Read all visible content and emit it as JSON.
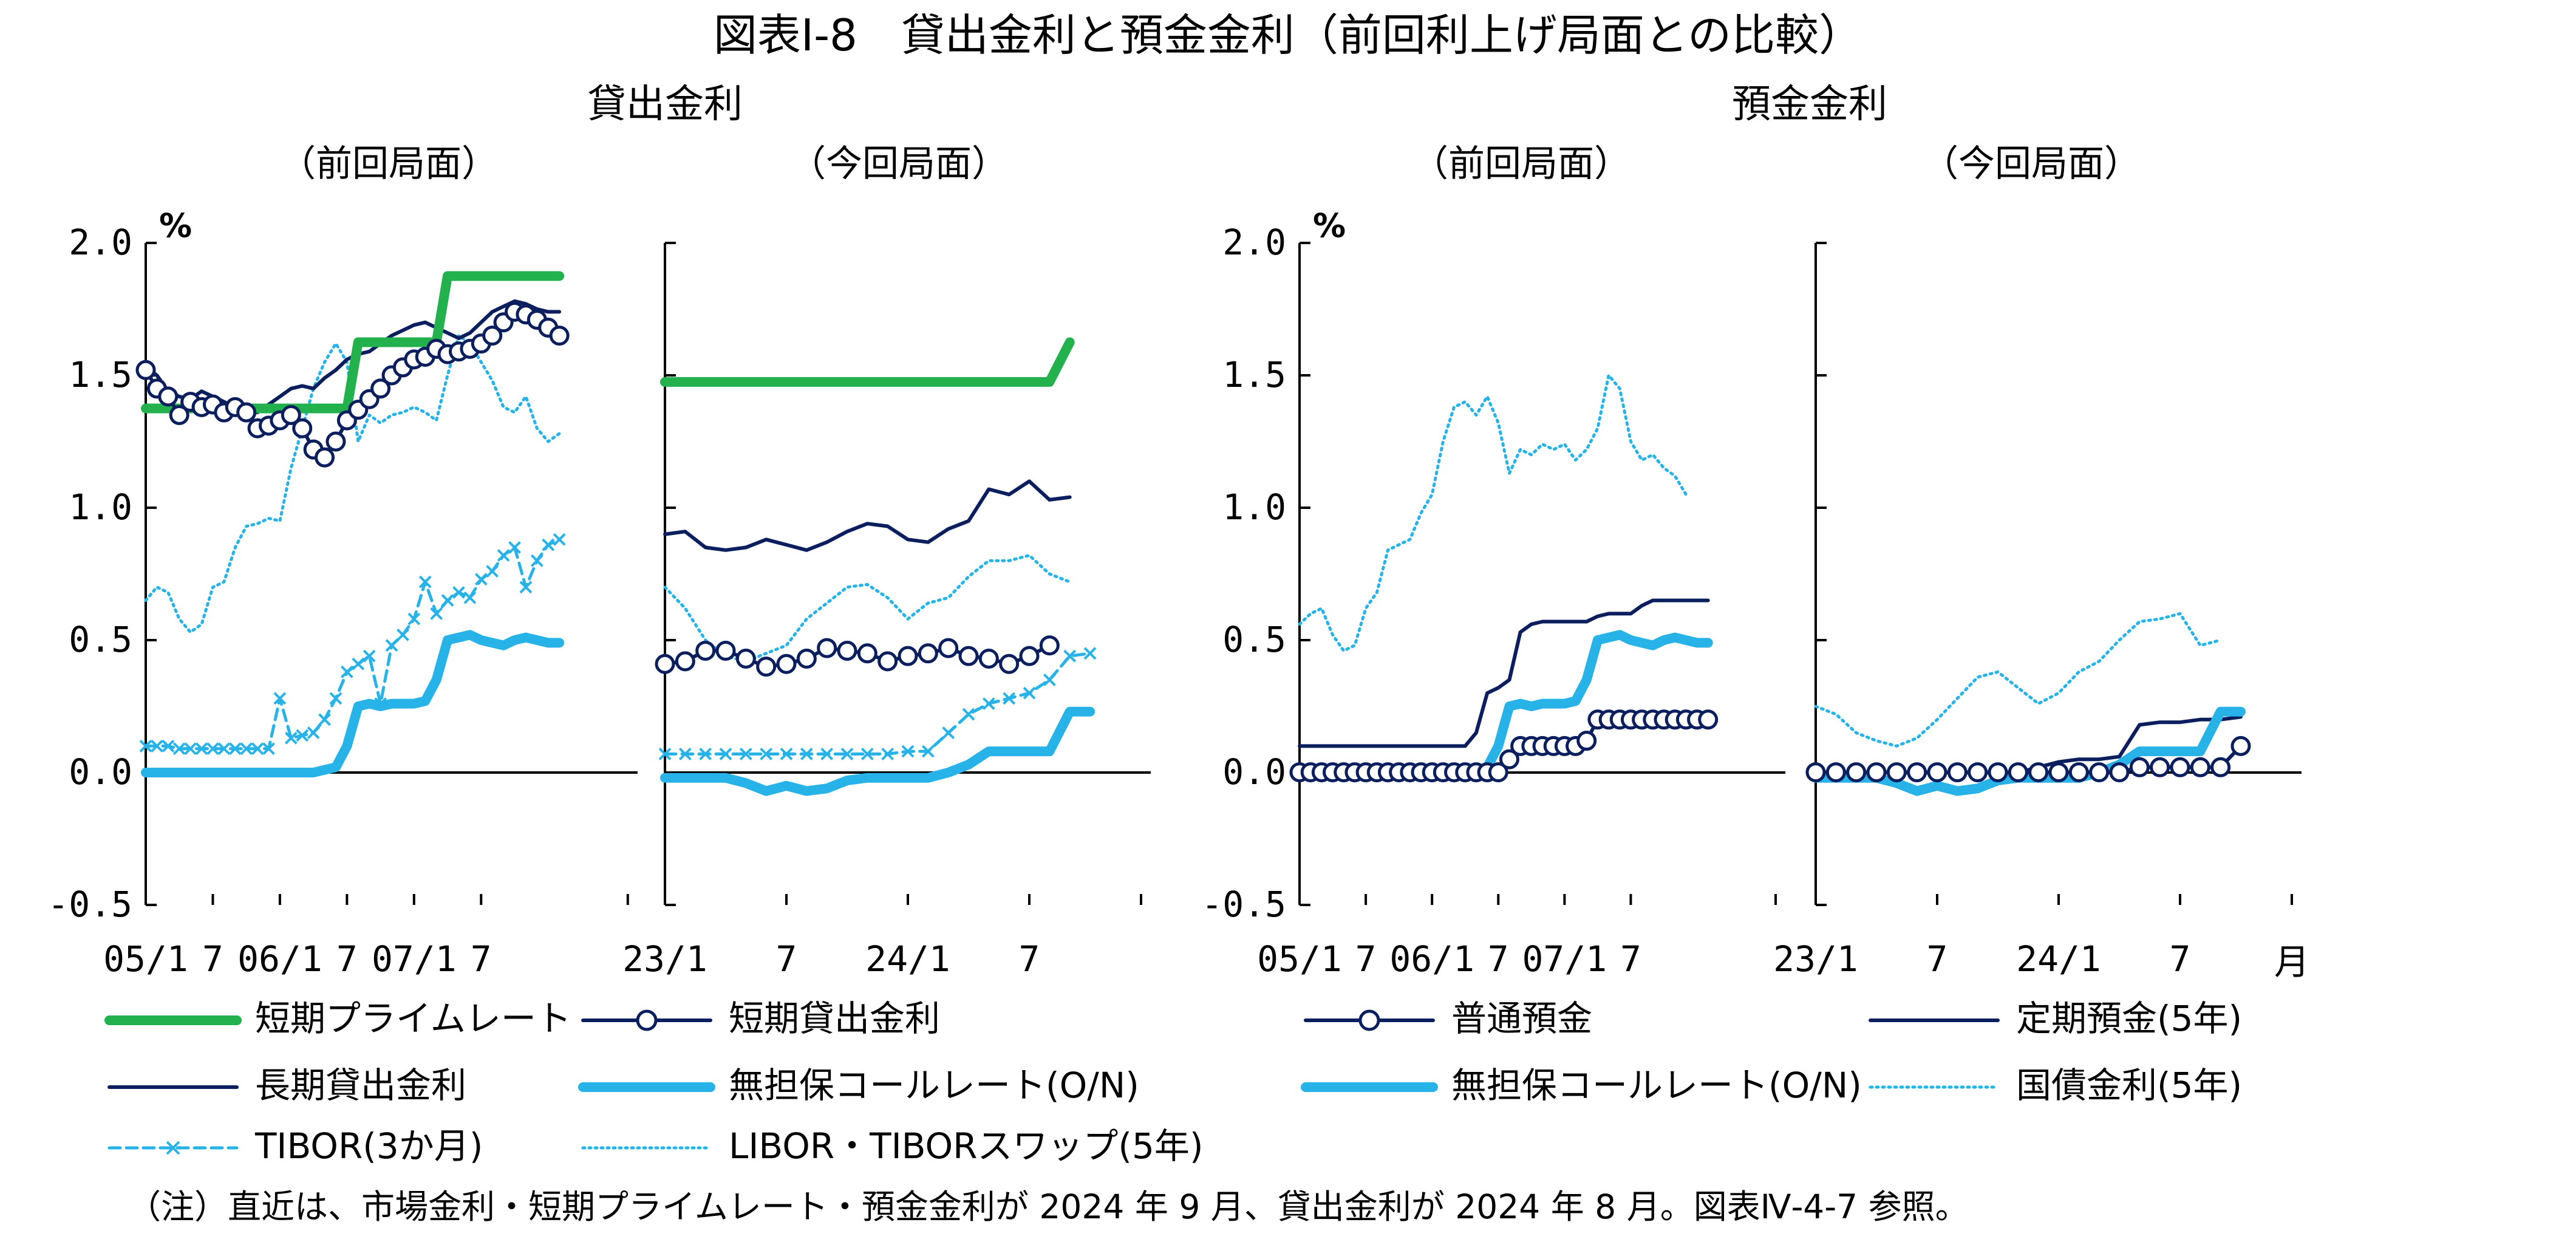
{
  "title": "図表Ⅰ-8　貸出金利と預金金利（前回利上げ局面との比較）",
  "note": "（注）直近は、市場金利・短期プライムレート・預金金利が 2024 年 9 月、貸出金利が 2024 年 8 月。図表Ⅳ-4-7 参照。",
  "groups": {
    "lending": "貸出金利",
    "deposit": "預金金利"
  },
  "subtitles": {
    "previous": "（前回局面）",
    "current": "（今回局面）"
  },
  "unit": "%",
  "month_label": "月",
  "colors": {
    "green": "#22b14c",
    "navy": "#0b1f5e",
    "cyan": "#27b3e8"
  },
  "chart_data": [
    {
      "type": "line",
      "panel": "lending-previous",
      "ylim": [
        -0.5,
        2.0
      ],
      "y_ticks": [
        "2.0",
        "1.5",
        "1.0",
        "0.5",
        "0.0",
        "-0.5"
      ],
      "x_ticks": [
        "05/1",
        "7",
        "06/1",
        "7",
        "07/1",
        "7"
      ],
      "series": [
        {
          "name": "短期プライムレート",
          "style": "green-thick",
          "values": [
            1.375,
            1.375,
            1.375,
            1.375,
            1.375,
            1.375,
            1.375,
            1.375,
            1.375,
            1.375,
            1.375,
            1.375,
            1.375,
            1.375,
            1.375,
            1.375,
            1.375,
            1.375,
            1.375,
            1.625,
            1.625,
            1.625,
            1.625,
            1.625,
            1.625,
            1.625,
            1.625,
            1.875,
            1.875,
            1.875,
            1.875,
            1.875,
            1.875,
            1.875,
            1.875,
            1.875,
            1.875,
            1.875
          ]
        },
        {
          "name": "長期貸出金利",
          "style": "navy-thin",
          "values": [
            1.53,
            1.5,
            1.44,
            1.42,
            1.41,
            1.44,
            1.42,
            1.4,
            1.38,
            1.36,
            1.36,
            1.39,
            1.42,
            1.45,
            1.46,
            1.45,
            1.49,
            1.52,
            1.56,
            1.58,
            1.59,
            1.62,
            1.65,
            1.67,
            1.69,
            1.7,
            1.68,
            1.66,
            1.64,
            1.66,
            1.7,
            1.74,
            1.76,
            1.78,
            1.77,
            1.75,
            1.74,
            1.74
          ]
        },
        {
          "name": "短期貸出金利",
          "style": "navy-circle",
          "values": [
            1.52,
            1.45,
            1.42,
            1.35,
            1.4,
            1.38,
            1.39,
            1.36,
            1.38,
            1.36,
            1.3,
            1.31,
            1.33,
            1.35,
            1.3,
            1.22,
            1.19,
            1.25,
            1.33,
            1.37,
            1.41,
            1.45,
            1.5,
            1.53,
            1.56,
            1.57,
            1.6,
            1.58,
            1.59,
            1.6,
            1.62,
            1.65,
            1.7,
            1.74,
            1.73,
            1.71,
            1.68,
            1.65
          ]
        },
        {
          "name": "無担保コールレート(O/N)",
          "style": "cyan-thick",
          "values": [
            0.0,
            0.0,
            0.0,
            0.0,
            0.0,
            0.0,
            0.0,
            0.0,
            0.0,
            0.0,
            0.0,
            0.0,
            0.0,
            0.0,
            0.0,
            0.0,
            0.01,
            0.02,
            0.1,
            0.25,
            0.26,
            0.25,
            0.26,
            0.26,
            0.26,
            0.27,
            0.35,
            0.5,
            0.51,
            0.52,
            0.5,
            0.49,
            0.48,
            0.5,
            0.51,
            0.5,
            0.49,
            0.49
          ]
        },
        {
          "name": "TIBOR(3か月)",
          "style": "cyan-dash-x",
          "values": [
            0.1,
            0.1,
            0.1,
            0.09,
            0.09,
            0.09,
            0.09,
            0.09,
            0.09,
            0.09,
            0.09,
            0.09,
            0.28,
            0.13,
            0.14,
            0.15,
            0.2,
            0.28,
            0.38,
            0.41,
            0.44,
            0.26,
            0.48,
            0.52,
            0.58,
            0.72,
            0.6,
            0.65,
            0.68,
            0.66,
            0.73,
            0.76,
            0.82,
            0.85,
            0.7,
            0.8,
            0.86,
            0.88
          ]
        },
        {
          "name": "LIBOR・TIBORスワップ(5年)",
          "style": "cyan-dot",
          "values": [
            0.65,
            0.7,
            0.68,
            0.58,
            0.53,
            0.56,
            0.7,
            0.72,
            0.85,
            0.93,
            0.94,
            0.96,
            0.95,
            1.15,
            1.3,
            1.45,
            1.55,
            1.62,
            1.55,
            1.25,
            1.35,
            1.32,
            1.35,
            1.36,
            1.38,
            1.36,
            1.33,
            1.5,
            1.65,
            1.62,
            1.55,
            1.48,
            1.38,
            1.36,
            1.42,
            1.3,
            1.25,
            1.28
          ]
        }
      ]
    },
    {
      "type": "line",
      "panel": "lending-current",
      "ylim": [
        -0.5,
        2.0
      ],
      "x_ticks": [
        "23/1",
        "7",
        "24/1",
        "7"
      ],
      "series": [
        {
          "name": "短期プライムレート",
          "style": "green-thick",
          "values": [
            1.475,
            1.475,
            1.475,
            1.475,
            1.475,
            1.475,
            1.475,
            1.475,
            1.475,
            1.475,
            1.475,
            1.475,
            1.475,
            1.475,
            1.475,
            1.475,
            1.475,
            1.475,
            1.475,
            1.475,
            1.625
          ]
        },
        {
          "name": "長期貸出金利",
          "style": "navy-thin",
          "values": [
            0.9,
            0.91,
            0.85,
            0.84,
            0.85,
            0.88,
            0.86,
            0.84,
            0.87,
            0.91,
            0.94,
            0.93,
            0.88,
            0.87,
            0.92,
            0.95,
            1.07,
            1.05,
            1.1,
            1.03,
            1.04
          ]
        },
        {
          "name": "短期貸出金利",
          "style": "navy-circle",
          "values": [
            0.41,
            0.42,
            0.46,
            0.46,
            0.43,
            0.4,
            0.41,
            0.43,
            0.47,
            0.46,
            0.45,
            0.42,
            0.44,
            0.45,
            0.47,
            0.44,
            0.43,
            0.41,
            0.44,
            0.48
          ]
        },
        {
          "name": "無担保コールレート(O/N)",
          "style": "cyan-thick",
          "values": [
            -0.02,
            -0.02,
            -0.02,
            -0.02,
            -0.04,
            -0.07,
            -0.05,
            -0.07,
            -0.06,
            -0.03,
            -0.02,
            -0.02,
            -0.02,
            -0.02,
            0.0,
            0.03,
            0.08,
            0.08,
            0.08,
            0.08,
            0.23,
            0.23
          ]
        },
        {
          "name": "TIBOR(3か月)",
          "style": "cyan-dash-x",
          "values": [
            0.07,
            0.07,
            0.07,
            0.07,
            0.07,
            0.07,
            0.07,
            0.07,
            0.07,
            0.07,
            0.07,
            0.07,
            0.08,
            0.08,
            0.15,
            0.22,
            0.26,
            0.28,
            0.3,
            0.35,
            0.44,
            0.45
          ]
        },
        {
          "name": "LIBOR・TIBORスワップ(5年)",
          "style": "cyan-dot",
          "values": [
            0.7,
            0.62,
            0.5,
            0.44,
            0.42,
            0.45,
            0.48,
            0.58,
            0.64,
            0.7,
            0.71,
            0.66,
            0.58,
            0.64,
            0.66,
            0.74,
            0.8,
            0.8,
            0.82,
            0.75,
            0.72
          ]
        }
      ]
    },
    {
      "type": "line",
      "panel": "deposit-previous",
      "ylim": [
        -0.5,
        2.0
      ],
      "y_ticks": [
        "2.0",
        "1.5",
        "1.0",
        "0.5",
        "0.0",
        "-0.5"
      ],
      "x_ticks": [
        "05/1",
        "7",
        "06/1",
        "7",
        "07/1",
        "7"
      ],
      "series": [
        {
          "name": "普通預金",
          "style": "navy-circle",
          "values": [
            0.001,
            0.001,
            0.001,
            0.001,
            0.001,
            0.001,
            0.001,
            0.001,
            0.001,
            0.001,
            0.001,
            0.001,
            0.001,
            0.001,
            0.001,
            0.001,
            0.001,
            0.001,
            0.001,
            0.05,
            0.1,
            0.1,
            0.1,
            0.1,
            0.1,
            0.1,
            0.12,
            0.2,
            0.2,
            0.2,
            0.2,
            0.2,
            0.2,
            0.2,
            0.2,
            0.2,
            0.2,
            0.2
          ]
        },
        {
          "name": "定期預金(5年)",
          "style": "navy-thin",
          "values": [
            0.1,
            0.1,
            0.1,
            0.1,
            0.1,
            0.1,
            0.1,
            0.1,
            0.1,
            0.1,
            0.1,
            0.1,
            0.1,
            0.1,
            0.1,
            0.1,
            0.15,
            0.3,
            0.32,
            0.35,
            0.53,
            0.56,
            0.57,
            0.57,
            0.57,
            0.57,
            0.57,
            0.59,
            0.6,
            0.6,
            0.6,
            0.63,
            0.65,
            0.65,
            0.65,
            0.65,
            0.65,
            0.65
          ]
        },
        {
          "name": "無担保コールレート(O/N)",
          "style": "cyan-thick",
          "values": [
            0.0,
            0.0,
            0.0,
            0.0,
            0.0,
            0.0,
            0.0,
            0.0,
            0.0,
            0.0,
            0.0,
            0.0,
            0.0,
            0.0,
            0.0,
            0.0,
            0.01,
            0.02,
            0.1,
            0.25,
            0.26,
            0.25,
            0.26,
            0.26,
            0.26,
            0.27,
            0.35,
            0.5,
            0.51,
            0.52,
            0.5,
            0.49,
            0.48,
            0.5,
            0.51,
            0.5,
            0.49,
            0.49
          ]
        },
        {
          "name": "国債金利(5年)",
          "style": "cyan-dot",
          "values": [
            0.56,
            0.6,
            0.62,
            0.52,
            0.46,
            0.48,
            0.62,
            0.68,
            0.84,
            0.86,
            0.88,
            0.98,
            1.05,
            1.25,
            1.38,
            1.4,
            1.35,
            1.42,
            1.32,
            1.13,
            1.22,
            1.2,
            1.24,
            1.22,
            1.24,
            1.18,
            1.22,
            1.3,
            1.5,
            1.45,
            1.25,
            1.18,
            1.2,
            1.15,
            1.12,
            1.05
          ]
        }
      ]
    },
    {
      "type": "line",
      "panel": "deposit-current",
      "ylim": [
        -0.5,
        2.0
      ],
      "x_ticks": [
        "23/1",
        "7",
        "24/1",
        "7"
      ],
      "series": [
        {
          "name": "普通預金",
          "style": "navy-circle",
          "values": [
            0.001,
            0.001,
            0.001,
            0.001,
            0.001,
            0.001,
            0.001,
            0.001,
            0.001,
            0.001,
            0.001,
            0.001,
            0.001,
            0.001,
            0.001,
            0.001,
            0.02,
            0.02,
            0.02,
            0.02,
            0.02,
            0.1
          ]
        },
        {
          "name": "定期預金(5年)",
          "style": "navy-thin",
          "values": [
            0.0,
            0.0,
            0.0,
            0.0,
            0.0,
            0.0,
            0.0,
            0.0,
            0.0,
            0.0,
            0.0,
            0.02,
            0.04,
            0.05,
            0.05,
            0.06,
            0.18,
            0.19,
            0.19,
            0.2,
            0.2,
            0.21
          ]
        },
        {
          "name": "無担保コールレート(O/N)",
          "style": "cyan-thick",
          "values": [
            -0.02,
            -0.02,
            -0.02,
            -0.02,
            -0.04,
            -0.07,
            -0.05,
            -0.07,
            -0.06,
            -0.03,
            -0.02,
            -0.02,
            -0.02,
            -0.02,
            0.0,
            0.03,
            0.08,
            0.08,
            0.08,
            0.08,
            0.23,
            0.23
          ]
        },
        {
          "name": "国債金利(5年)",
          "style": "cyan-dot",
          "values": [
            0.25,
            0.22,
            0.15,
            0.12,
            0.1,
            0.13,
            0.2,
            0.28,
            0.36,
            0.38,
            0.32,
            0.26,
            0.3,
            0.38,
            0.42,
            0.5,
            0.57,
            0.58,
            0.6,
            0.48,
            0.5
          ]
        }
      ]
    }
  ],
  "legend": {
    "lending": [
      {
        "label": "短期プライムレート",
        "style": "green-thick"
      },
      {
        "label": "短期貸出金利",
        "style": "navy-circle"
      },
      {
        "label": "長期貸出金利",
        "style": "navy-thin"
      },
      {
        "label": "無担保コールレート(O/N)",
        "style": "cyan-thick"
      },
      {
        "label": "TIBOR(3か月)",
        "style": "cyan-dash-x"
      },
      {
        "label": "LIBOR・TIBORスワップ(5年)",
        "style": "cyan-dot"
      }
    ],
    "deposit": [
      {
        "label": "普通預金",
        "style": "navy-circle"
      },
      {
        "label": "定期預金(5年)",
        "style": "navy-thin"
      },
      {
        "label": "無担保コールレート(O/N)",
        "style": "cyan-thick"
      },
      {
        "label": "国債金利(5年)",
        "style": "cyan-dot"
      }
    ]
  }
}
